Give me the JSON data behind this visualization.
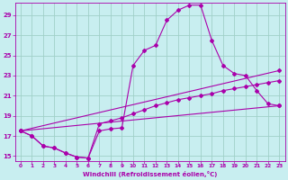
{
  "bg_color": "#c8eef0",
  "grid_color": "#a0d0c8",
  "line_color": "#aa00aa",
  "xlim": [
    -0.5,
    23.5
  ],
  "ylim": [
    14.5,
    30.2
  ],
  "xticks": [
    0,
    1,
    2,
    3,
    4,
    5,
    6,
    7,
    8,
    9,
    10,
    11,
    12,
    13,
    14,
    15,
    16,
    17,
    18,
    19,
    20,
    21,
    22,
    23
  ],
  "yticks": [
    15,
    17,
    19,
    21,
    23,
    25,
    27,
    29
  ],
  "xlabel": "Windchill (Refroidissement éolien,°C)",
  "main_x": [
    0,
    1,
    2,
    3,
    4,
    5,
    6,
    7,
    8,
    9,
    10,
    11,
    12,
    13,
    14,
    15,
    16,
    17,
    18,
    19,
    20,
    21,
    22,
    23
  ],
  "main_y": [
    17.5,
    17.0,
    16.0,
    15.8,
    15.3,
    14.9,
    14.8,
    17.5,
    17.7,
    17.8,
    24.0,
    25.5,
    26.0,
    28.5,
    29.5,
    30.0,
    30.0,
    26.5,
    24.0,
    23.2,
    23.0,
    21.5,
    20.2,
    20.0
  ],
  "line2_x": [
    0,
    23
  ],
  "line2_y": [
    17.5,
    20.0
  ],
  "line3_x": [
    0,
    23
  ],
  "line3_y": [
    17.5,
    23.5
  ],
  "line4_x": [
    0,
    1,
    2,
    3,
    4,
    5,
    6,
    7,
    8,
    9,
    10,
    11,
    12,
    13,
    14,
    15,
    16,
    17,
    18,
    19,
    20,
    21,
    22,
    23
  ],
  "line4_y": [
    17.5,
    17.0,
    16.0,
    15.8,
    15.3,
    14.9,
    14.8,
    18.2,
    18.5,
    18.8,
    19.2,
    19.6,
    20.0,
    20.3,
    20.6,
    20.8,
    21.0,
    21.2,
    21.5,
    21.7,
    21.9,
    22.1,
    22.3,
    22.5
  ]
}
